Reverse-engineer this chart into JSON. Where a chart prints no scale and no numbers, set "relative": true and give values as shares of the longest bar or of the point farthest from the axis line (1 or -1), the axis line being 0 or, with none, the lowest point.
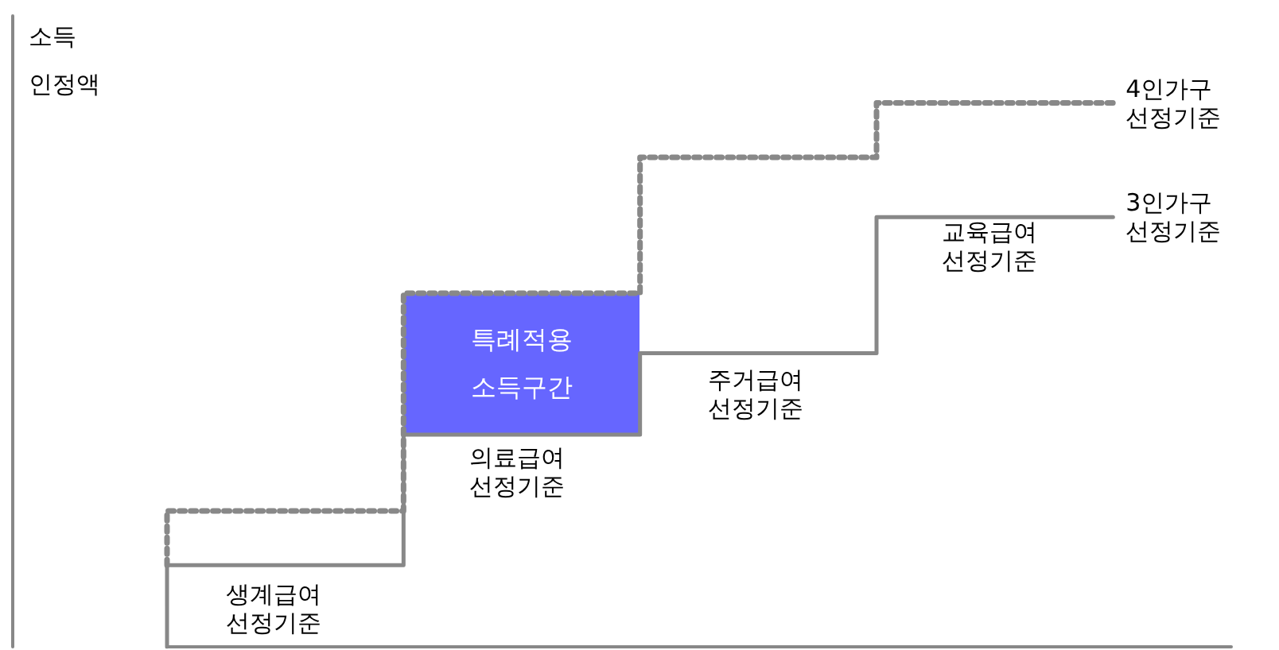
{
  "chart_data": {
    "type": "step",
    "relative": true,
    "ylabel": "소득 인정액",
    "categories": [
      null,
      null,
      null,
      null,
      null,
      null,
      null,
      null,
      null,
      null
    ],
    "series": [
      {
        "name": "4인가구 선정기준",
        "color": "#888888",
        "line_style": "dotted",
        "values": [
          0.15,
          0.25,
          0.25,
          0.65,
          0.65,
          0.9,
          0.9,
          1.0,
          1.0,
          null
        ]
      },
      {
        "name": "3인가구 선정기준",
        "color": "#888888",
        "line_style": "solid",
        "values": [
          0,
          0.15,
          0.15,
          0.39,
          0.39,
          0.54,
          0.54,
          0.79,
          0.79,
          null
        ]
      }
    ],
    "annotations": [
      "생계급여 선정기준",
      "의료급여 선정기준",
      "주거급여 선정기준",
      "교육급여 선정기준",
      "특례적용 소득구간"
    ],
    "grid": false,
    "legend": false
  }
}
